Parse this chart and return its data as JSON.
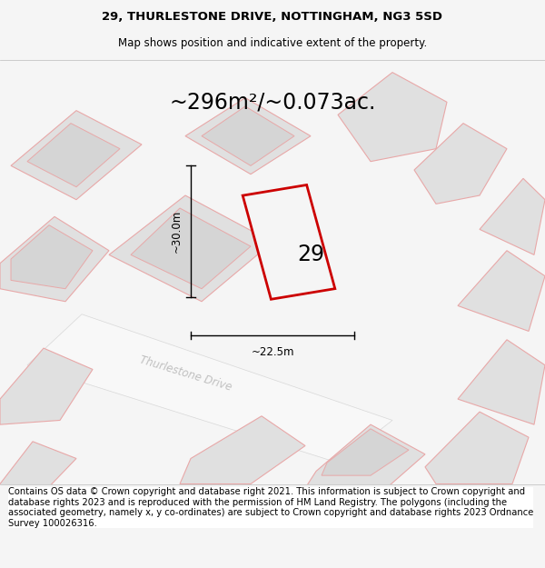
{
  "title": "29, THURLESTONE DRIVE, NOTTINGHAM, NG3 5SD",
  "subtitle": "Map shows position and indicative extent of the property.",
  "footer": "Contains OS data © Crown copyright and database right 2021. This information is subject to Crown copyright and database rights 2023 and is reproduced with the permission of HM Land Registry. The polygons (including the associated geometry, namely x, y co-ordinates) are subject to Crown copyright and database rights 2023 Ordnance Survey 100026316.",
  "area_text": "~296m²/~0.073ac.",
  "label_29": "29",
  "dim_vertical": "~30.0m",
  "dim_horizontal": "~22.5m",
  "street_name": "Thurlestone Drive",
  "fig_bg": "#f5f5f5",
  "map_bg": "#ebebeb",
  "plot_fill": "#f5f5f5",
  "plot_edge": "#cc0000",
  "neighbor_fill": "#e0e0e0",
  "neighbor_edge": "#e8a8a8",
  "neighbor_inner_fill": "#d5d5d5",
  "road_fill": "#f8f8f8",
  "title_fontsize": 9.5,
  "subtitle_fontsize": 8.5,
  "footer_fontsize": 7.2,
  "area_fontsize": 17,
  "label_fontsize": 17,
  "street_fontsize": 8.5,
  "dim_fontsize": 8.5
}
